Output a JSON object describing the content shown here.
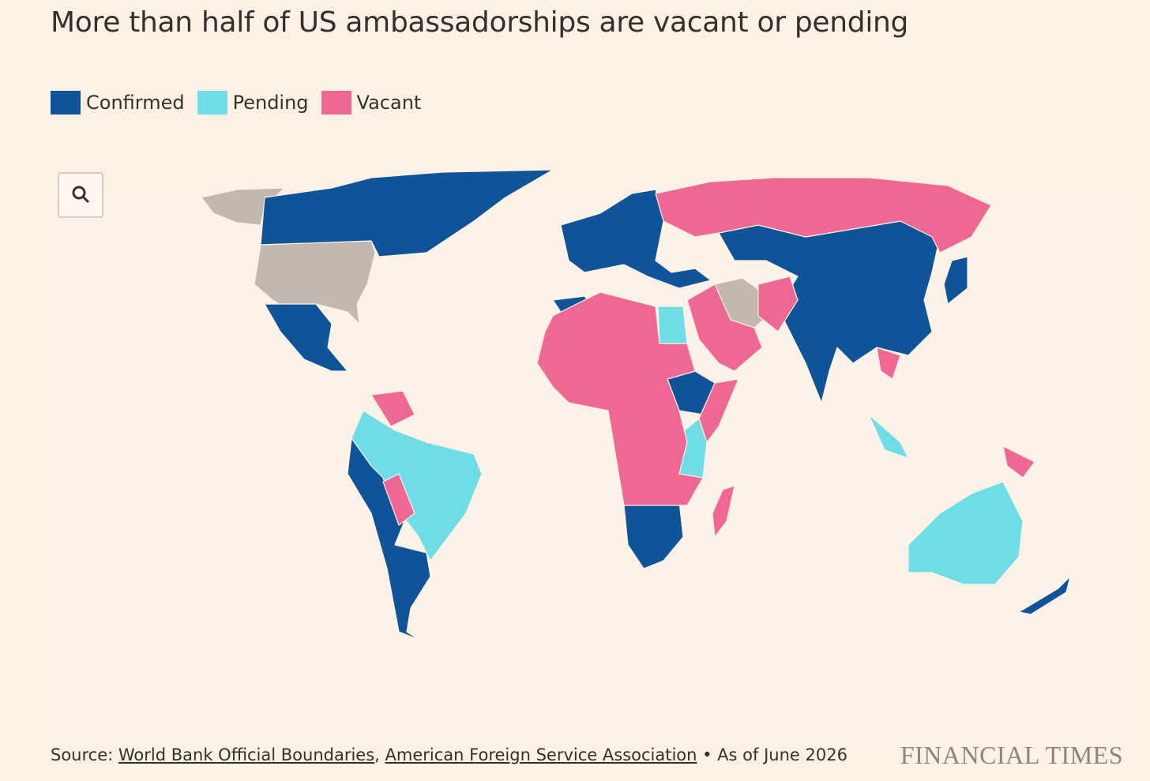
{
  "title": "More than half of US ambassadorships are vacant or pending",
  "legend": [
    {
      "label": "Confirmed",
      "color": "#0f5499"
    },
    {
      "label": "Pending",
      "color": "#6fdde6"
    },
    {
      "label": "Vacant",
      "color": "#ee6893"
    }
  ],
  "no_data_color": "#c2b8b0",
  "source": {
    "prefix": "Source:",
    "links": [
      "World Bank Official Boundaries",
      "American Foreign Service Association"
    ],
    "separator": ",",
    "note": "• As of June 2026"
  },
  "brand": "FINANCIAL TIMES"
}
